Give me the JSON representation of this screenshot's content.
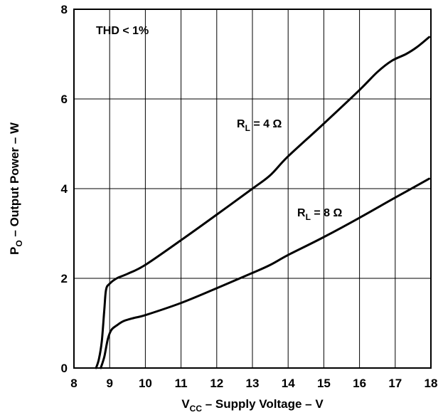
{
  "chart_data": {
    "type": "line",
    "xlabel": {
      "main": "V",
      "sub": "CC",
      "rest": " – Supply Voltage – V"
    },
    "ylabel": {
      "main": "P",
      "sub": "O",
      "rest": " – Output Power – W"
    },
    "xlim": [
      8,
      18
    ],
    "ylim": [
      0,
      8
    ],
    "xticks": [
      8,
      9,
      10,
      11,
      12,
      13,
      14,
      15,
      16,
      17,
      18
    ],
    "yticks": [
      0,
      2,
      4,
      6,
      8
    ],
    "grid": true,
    "annotation": "THD < 1%",
    "series": [
      {
        "name": "R_L = 4 Ω",
        "label": {
          "main": "R",
          "sub": "L",
          "rest": " = 4 Ω"
        },
        "x": [
          8.62,
          8.7,
          8.78,
          8.85,
          8.9,
          9.0,
          9.2,
          9.5,
          10,
          11,
          12,
          13,
          13.5,
          14,
          15,
          16,
          16.5,
          16.9,
          17.3,
          17.6,
          17.95
        ],
        "y": [
          0,
          0.2,
          0.6,
          1.3,
          1.75,
          1.88,
          2.0,
          2.1,
          2.3,
          2.85,
          3.42,
          4.0,
          4.3,
          4.72,
          5.45,
          6.2,
          6.6,
          6.85,
          7.0,
          7.15,
          7.38
        ]
      },
      {
        "name": "R_L = 8 Ω",
        "label": {
          "main": "R",
          "sub": "L",
          "rest": " = 8 Ω"
        },
        "x": [
          8.75,
          8.85,
          8.95,
          9.05,
          9.2,
          9.4,
          9.7,
          10,
          11,
          12,
          13,
          13.5,
          14,
          15,
          16,
          17,
          17.95
        ],
        "y": [
          0,
          0.25,
          0.65,
          0.85,
          0.95,
          1.05,
          1.12,
          1.18,
          1.45,
          1.78,
          2.12,
          2.3,
          2.52,
          2.92,
          3.35,
          3.8,
          4.22
        ]
      }
    ]
  }
}
